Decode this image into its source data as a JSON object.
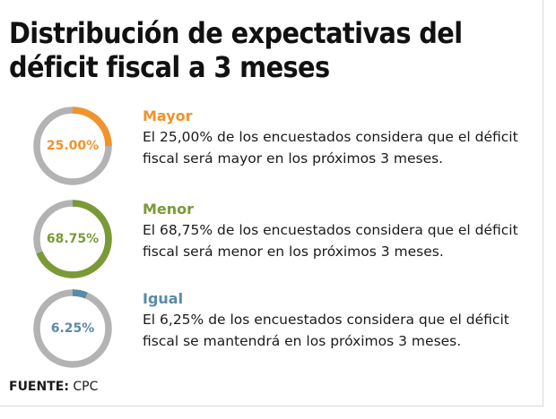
{
  "title": {
    "line1": "Distribución de expectativas del",
    "line2": "déficit fiscal a 3 meses"
  },
  "chart_data": {
    "type": "pie",
    "categories": [
      "Mayor",
      "Menor",
      "Igual"
    ],
    "values": [
      25.0,
      68.75,
      6.25
    ],
    "unit": "%",
    "track_color": "#b3b3b3",
    "items": [
      {
        "label": "Mayor",
        "value": 25.0,
        "value_label": "25.00%",
        "color": "#f0932b",
        "desc_line1": "El 25,00% de los encuestados considera que el déficit",
        "desc_line2": "fiscal será mayor en los próximos 3 meses."
      },
      {
        "label": "Menor",
        "value": 68.75,
        "value_label": "68.75%",
        "color": "#7a9a35",
        "desc_line1": "El 68,75% de los encuestados considera que el déficit",
        "desc_line2": "fiscal será menor en los próximos 3 meses."
      },
      {
        "label": "Igual",
        "value": 6.25,
        "value_label": "6.25%",
        "color": "#5a8aa6",
        "desc_line1": "El 6,25% de los encuestados considera que el déficit",
        "desc_line2": "fiscal se mantendrá en los próximos 3 meses."
      }
    ]
  },
  "source": {
    "label": "FUENTE:",
    "value": "CPC"
  }
}
